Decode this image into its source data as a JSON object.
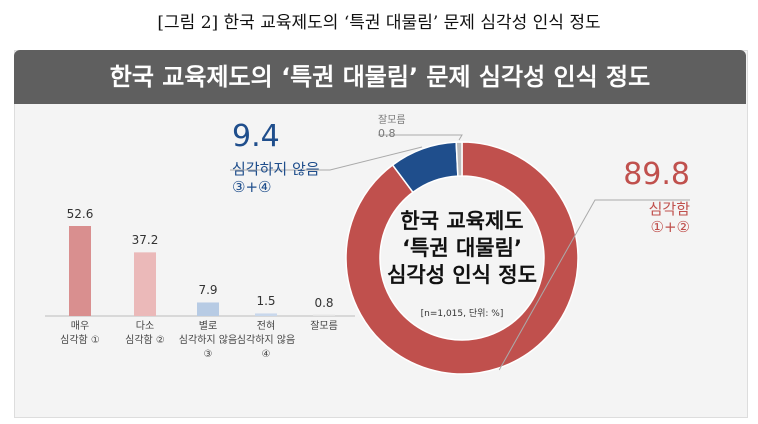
{
  "caption": "[그림 2] 한국 교육제도의 ‘특권 대물림’ 문제 심각성 인식 정도",
  "banner": "한국 교육제도의 ‘특권 대물림’ 문제 심각성 인식 정도",
  "chart_data": [
    {
      "type": "bar",
      "categories": [
        "매우\n심각함 ①",
        "다소\n심각함 ②",
        "별로\n심각하지 않음\n③",
        "전혀\n심각하지 않음\n④",
        "잘모름"
      ],
      "values": [
        52.6,
        37.2,
        7.9,
        1.5,
        0.8
      ],
      "colors": [
        "#d98f8f",
        "#ebb9b9",
        "#b7cbe4",
        "#c9d8ec",
        "#e4e4e4"
      ]
    },
    {
      "type": "donut",
      "center_text": "한국 교육제도\n‘특권 대물림’\n심각성 인식 정도",
      "note": "[n=1,015, 단위: %]",
      "categories": [
        "심각함\n①+②",
        "심각하지 않음\n③+④",
        "잘모름"
      ],
      "values": [
        89.8,
        9.4,
        0.8
      ],
      "colors": [
        "#c0504d",
        "#1f4e8c",
        "#bdbdbd"
      ]
    }
  ]
}
